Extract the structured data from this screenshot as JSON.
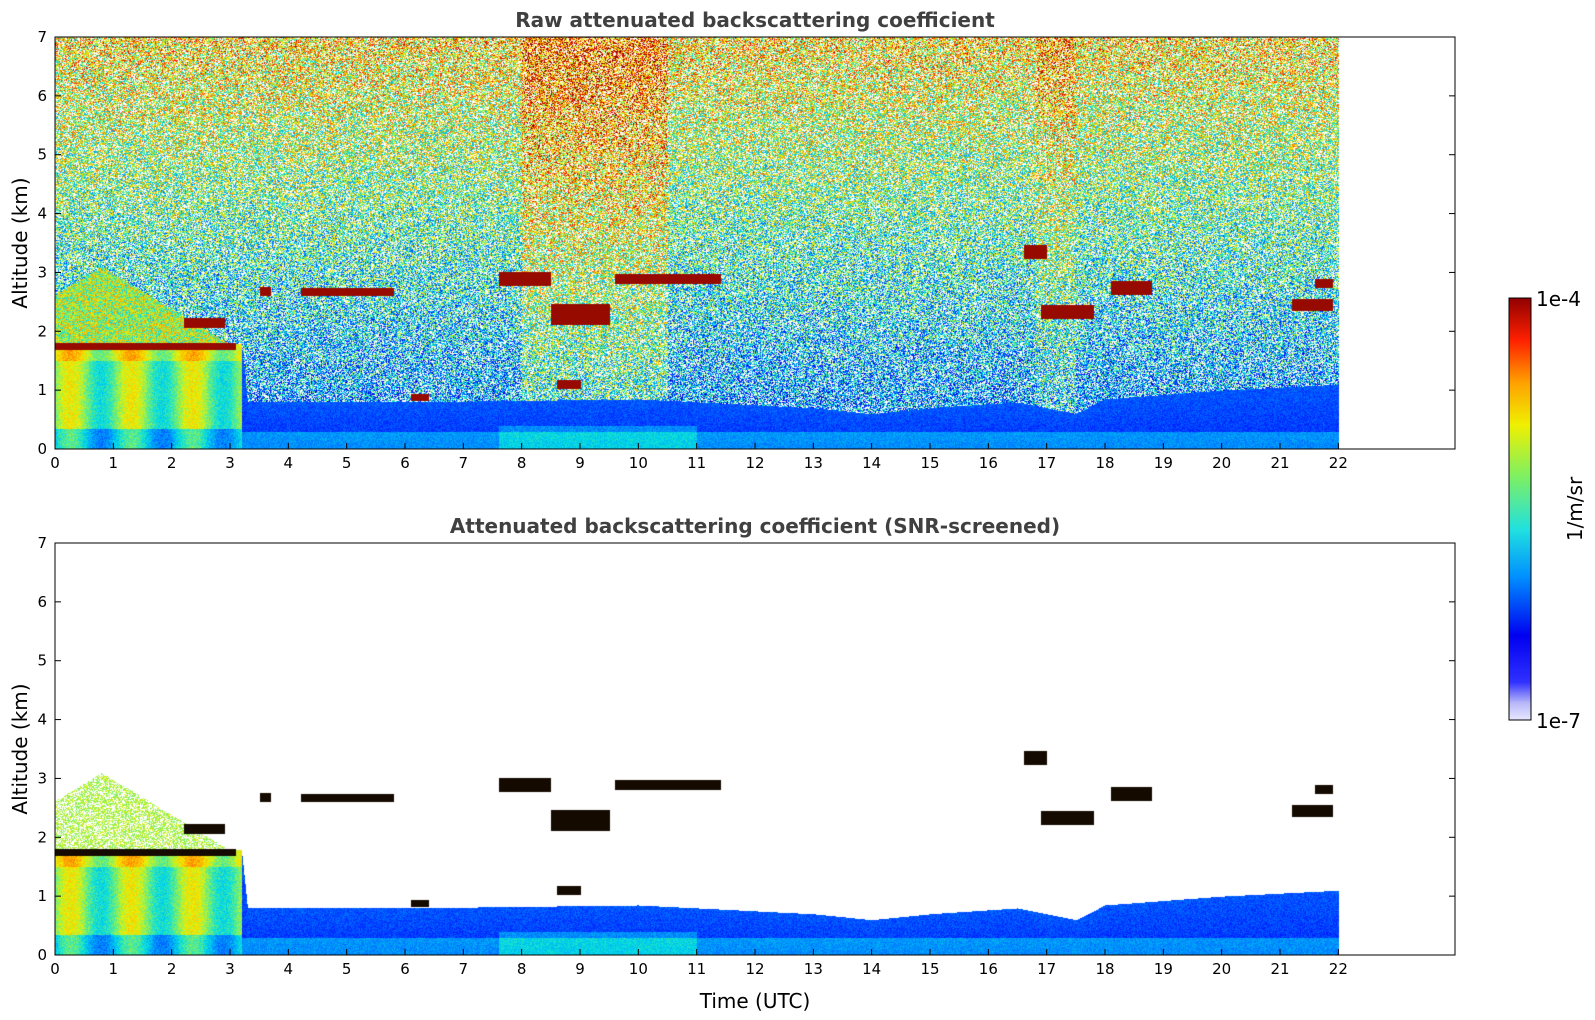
{
  "chart_data": [
    {
      "type": "heatmap",
      "title": "Raw attenuated backscattering coefficient",
      "xlabel": "",
      "ylabel": "Altitude (km)",
      "xlim": [
        0,
        24
      ],
      "ylim": [
        0,
        7
      ],
      "xticks": [
        "0",
        "1",
        "2",
        "3",
        "4",
        "5",
        "6",
        "7",
        "8",
        "9",
        "10",
        "11",
        "12",
        "13",
        "14",
        "15",
        "16",
        "17",
        "18",
        "19",
        "20",
        "21",
        "22"
      ],
      "yticks": [
        "0",
        "1",
        "2",
        "3",
        "4",
        "5",
        "6",
        "7"
      ],
      "data_end_time": 22,
      "mode": "raw",
      "grid": false
    },
    {
      "type": "heatmap",
      "title": "Attenuated backscattering coefficient (SNR-screened)",
      "xlabel": "Time (UTC)",
      "ylabel": "Altitude (km)",
      "xlim": [
        0,
        24
      ],
      "ylim": [
        0,
        7
      ],
      "xticks": [
        "0",
        "1",
        "2",
        "3",
        "4",
        "5",
        "6",
        "7",
        "8",
        "9",
        "10",
        "11",
        "12",
        "13",
        "14",
        "15",
        "16",
        "17",
        "18",
        "19",
        "20",
        "21",
        "22"
      ],
      "yticks": [
        "0",
        "1",
        "2",
        "3",
        "4",
        "5",
        "6",
        "7"
      ],
      "data_end_time": 22,
      "mode": "screened",
      "grid": false
    }
  ],
  "colorbar": {
    "label": "1/m/sr",
    "max_label": "1e-4",
    "min_label": "1e-7",
    "scale": "log",
    "range": [
      1e-07,
      0.0001
    ],
    "colormap": "jet"
  },
  "boundary_layer_top": [
    [
      0,
      1.75
    ],
    [
      3.2,
      1.75
    ],
    [
      3.3,
      0.8
    ],
    [
      6,
      0.8
    ],
    [
      10,
      0.85
    ],
    [
      13,
      0.7
    ],
    [
      14,
      0.6
    ],
    [
      15,
      0.7
    ],
    [
      16.5,
      0.8
    ],
    [
      17.5,
      0.6
    ],
    [
      18,
      0.85
    ],
    [
      20,
      1.0
    ],
    [
      22,
      1.1
    ]
  ],
  "cloud_layers": [
    {
      "t0": 0.0,
      "t1": 3.1,
      "alt": 1.75,
      "thick": 0.06
    },
    {
      "t0": 2.2,
      "t1": 2.9,
      "alt": 2.15,
      "thick": 0.08
    },
    {
      "t0": 3.5,
      "t1": 3.7,
      "alt": 2.68,
      "thick": 0.08
    },
    {
      "t0": 4.2,
      "t1": 5.8,
      "alt": 2.68,
      "thick": 0.07
    },
    {
      "t0": 6.1,
      "t1": 6.4,
      "alt": 0.88,
      "thick": 0.06
    },
    {
      "t0": 7.6,
      "t1": 8.5,
      "alt": 2.9,
      "thick": 0.12
    },
    {
      "t0": 8.5,
      "t1": 9.5,
      "alt": 2.3,
      "thick": 0.18
    },
    {
      "t0": 9.6,
      "t1": 11.4,
      "alt": 2.9,
      "thick": 0.08
    },
    {
      "t0": 8.6,
      "t1": 9.0,
      "alt": 1.1,
      "thick": 0.08
    },
    {
      "t0": 16.6,
      "t1": 17.0,
      "alt": 3.35,
      "thick": 0.12
    },
    {
      "t0": 16.9,
      "t1": 17.8,
      "alt": 2.33,
      "thick": 0.12
    },
    {
      "t0": 18.1,
      "t1": 18.8,
      "alt": 2.75,
      "thick": 0.12
    },
    {
      "t0": 21.2,
      "t1": 21.9,
      "alt": 2.45,
      "thick": 0.1
    },
    {
      "t0": 21.6,
      "t1": 21.9,
      "alt": 2.82,
      "thick": 0.08
    }
  ]
}
